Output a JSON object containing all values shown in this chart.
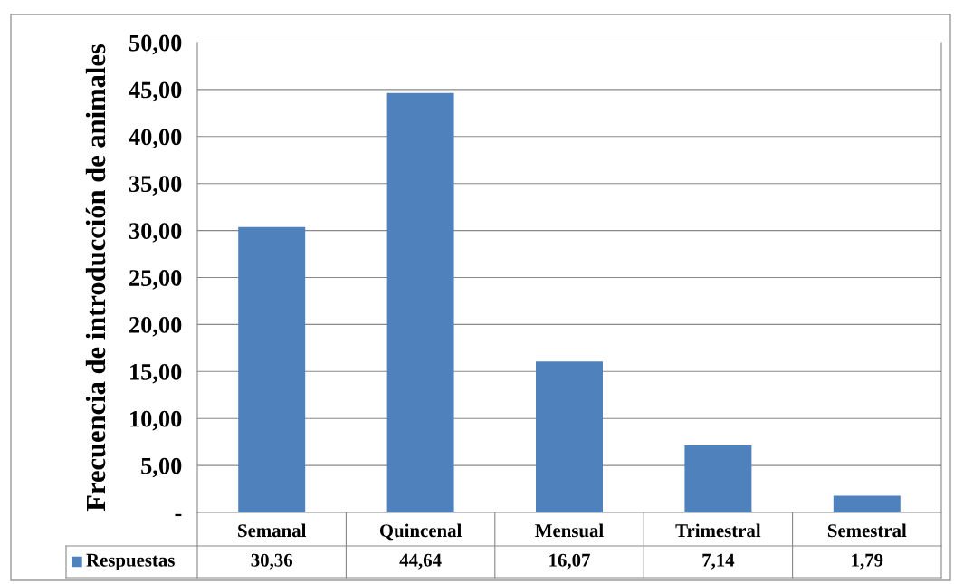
{
  "chart_data": {
    "type": "bar",
    "ylabel": "Frecuencia de introducción de animales",
    "categories": [
      "Semanal",
      "Quincenal",
      "Mensual",
      "Trimestral",
      "Semestral"
    ],
    "series": [
      {
        "name": "Respuestas",
        "color": "#4f81bd",
        "values": [
          30.36,
          44.64,
          16.07,
          7.14,
          1.79
        ],
        "value_labels": [
          "30,36",
          "44,64",
          "16,07",
          "7,14",
          "1,79"
        ]
      }
    ],
    "ylim": [
      0,
      50
    ],
    "yticks": [
      {
        "value": 0,
        "label": "-"
      },
      {
        "value": 5,
        "label": "5,00"
      },
      {
        "value": 10,
        "label": "10,00"
      },
      {
        "value": 15,
        "label": "15,00"
      },
      {
        "value": 20,
        "label": "20,00"
      },
      {
        "value": 25,
        "label": "25,00"
      },
      {
        "value": 30,
        "label": "30,00"
      },
      {
        "value": 35,
        "label": "35,00"
      },
      {
        "value": 40,
        "label": "40,00"
      },
      {
        "value": 45,
        "label": "45,00"
      },
      {
        "value": 50,
        "label": "50,00"
      }
    ],
    "grid": "y",
    "legend": "bottom"
  }
}
